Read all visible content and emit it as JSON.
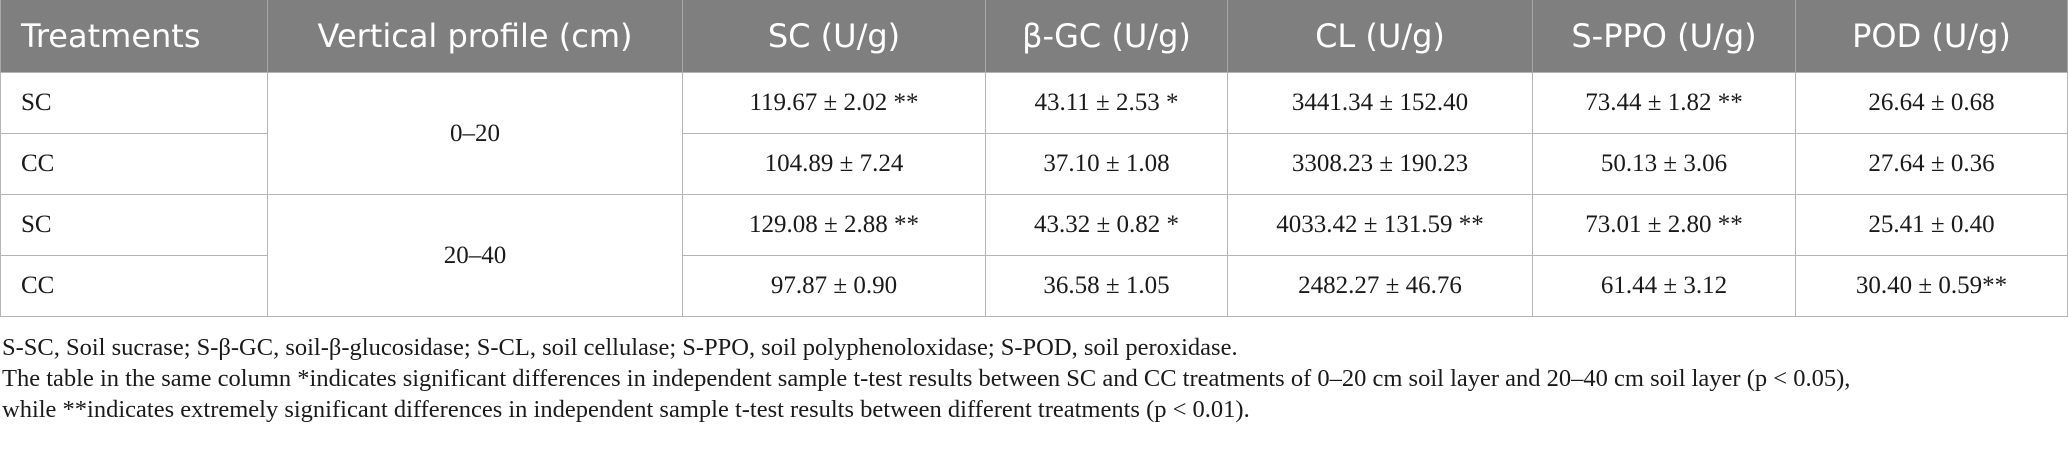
{
  "table": {
    "headers": [
      "Treatments",
      "Vertical profile (cm)",
      "SC (U/g)",
      "β-GC (U/g)",
      "CL (U/g)",
      "S-PPO (U/g)",
      "POD (U/g)"
    ],
    "groups": [
      {
        "profile": "0–20",
        "rows": [
          {
            "treatment": "SC",
            "values": [
              "119.67 ± 2.02 **",
              "43.11 ± 2.53 *",
              "3441.34 ± 152.40",
              "73.44 ± 1.82 **",
              "26.64 ± 0.68"
            ]
          },
          {
            "treatment": "CC",
            "values": [
              "104.89 ± 7.24",
              "37.10 ± 1.08",
              "3308.23 ± 190.23",
              "50.13 ± 3.06",
              "27.64 ± 0.36"
            ]
          }
        ]
      },
      {
        "profile": "20–40",
        "rows": [
          {
            "treatment": "SC",
            "values": [
              "129.08 ± 2.88 **",
              "43.32 ± 0.82 *",
              "4033.42 ± 131.59 **",
              "73.01 ± 2.80 **",
              "25.41 ± 0.40"
            ]
          },
          {
            "treatment": "CC",
            "values": [
              "97.87 ± 0.90",
              "36.58 ± 1.05",
              "2482.27 ± 46.76",
              "61.44 ± 3.12",
              "30.40 ± 0.59**"
            ]
          }
        ]
      }
    ]
  },
  "notes": {
    "abbreviations": "S-SC, Soil sucrase; S-β-GC, soil-β-glucosidase; S-CL, soil cellulase; S-PPO, soil polyphenoloxidase; S-POD, soil peroxidase.",
    "significance_line1": "The table in the same column *indicates significant differences in independent sample t-test results between SC and CC treatments of 0–20 cm soil layer and 20–40 cm soil layer (p < 0.05),",
    "significance_line2": "while **indicates extremely significant differences in independent sample t-test results between different treatments (p < 0.01)."
  }
}
